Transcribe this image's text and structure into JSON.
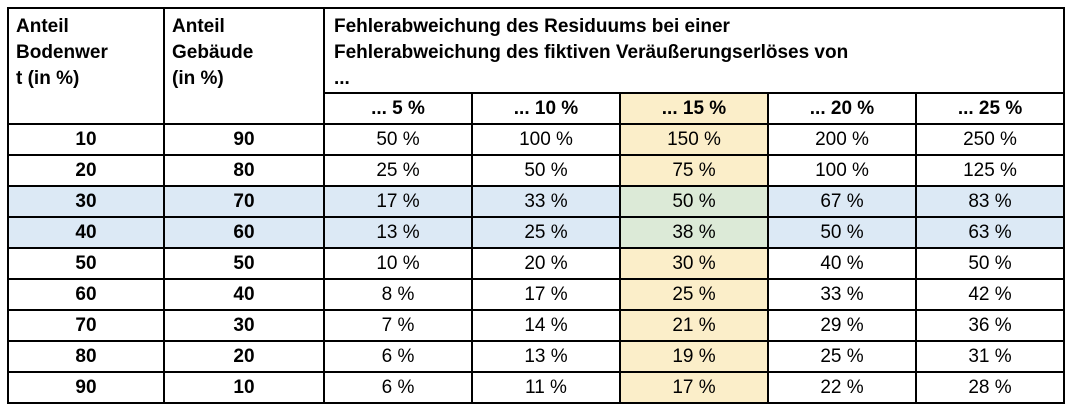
{
  "table": {
    "header": {
      "col1": "Anteil\nBodenwer\nt (in %)",
      "col2": "Anteil\nGebäude\n(in %)",
      "main": "Fehlerabweichung des Residuums bei einer\nFehlerabweichung des fiktiven Veräußerungserlöses von\n...",
      "sub": [
        "... 5 %",
        "... 10 %",
        "... 15 %",
        "... 20 %",
        "... 25 %"
      ]
    },
    "rows": [
      {
        "bodenwert": "10",
        "gebaeude": "90",
        "values": [
          "50 %",
          "100 %",
          "150 %",
          "200 %",
          "250 %"
        ]
      },
      {
        "bodenwert": "20",
        "gebaeude": "80",
        "values": [
          "25 %",
          "50 %",
          "75 %",
          "100 %",
          "125 %"
        ]
      },
      {
        "bodenwert": "30",
        "gebaeude": "70",
        "values": [
          "17 %",
          "33 %",
          "50 %",
          "67 %",
          "83 %"
        ]
      },
      {
        "bodenwert": "40",
        "gebaeude": "60",
        "values": [
          "13 %",
          "25 %",
          "38 %",
          "50 %",
          "63 %"
        ]
      },
      {
        "bodenwert": "50",
        "gebaeude": "50",
        "values": [
          "10 %",
          "20 %",
          "30 %",
          "40 %",
          "50 %"
        ]
      },
      {
        "bodenwert": "60",
        "gebaeude": "40",
        "values": [
          "8 %",
          "17 %",
          "25 %",
          "33 %",
          "42 %"
        ]
      },
      {
        "bodenwert": "70",
        "gebaeude": "30",
        "values": [
          "7 %",
          "14 %",
          "21 %",
          "29 %",
          "36 %"
        ]
      },
      {
        "bodenwert": "80",
        "gebaeude": "20",
        "values": [
          "6 %",
          "13 %",
          "19 %",
          "25 %",
          "31 %"
        ]
      },
      {
        "bodenwert": "90",
        "gebaeude": "10",
        "values": [
          "6 %",
          "11 %",
          "17 %",
          "22 %",
          "28 %"
        ]
      }
    ],
    "highlight": {
      "row_indexes": [
        2,
        3
      ],
      "column_index": 2,
      "colors": {
        "yellow": "#fbeec9",
        "blue": "#dce9f5",
        "green": "#dcead7",
        "border": "#000000",
        "text": "#000000"
      }
    }
  }
}
